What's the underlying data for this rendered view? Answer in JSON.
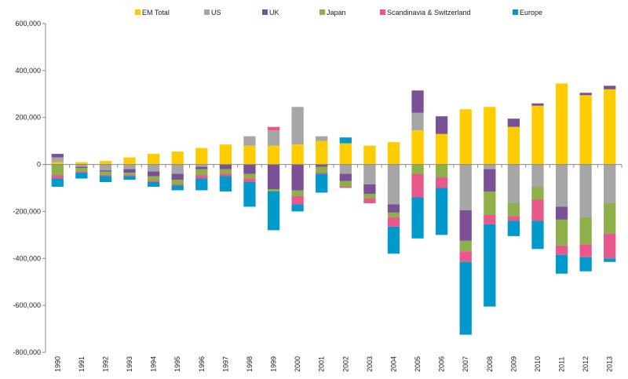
{
  "chart_data": {
    "type": "bar",
    "stacked": true,
    "grid": false,
    "legend_position": "top",
    "ylim": [
      -800000,
      600000
    ],
    "y_ticks": [
      600000,
      400000,
      200000,
      0,
      -200000,
      -400000,
      -600000,
      -800000
    ],
    "y_tick_labels": [
      "600,000",
      "400,000",
      "200,000",
      "0",
      "-200,000",
      "-400,000",
      "-600,000",
      "-800,000"
    ],
    "categories": [
      "1990",
      "1991",
      "1992",
      "1993",
      "1994",
      "1995",
      "1996",
      "1997",
      "1998",
      "1999",
      "2000",
      "2001",
      "2002",
      "2003",
      "2004",
      "2005",
      "2006",
      "2007",
      "2008",
      "2009",
      "2010",
      "2011",
      "2012",
      "2013"
    ],
    "series": [
      {
        "name": "EM Total",
        "color": "#FFCC00",
        "values": [
          10000,
          10000,
          15000,
          30000,
          45000,
          55000,
          70000,
          85000,
          80000,
          80000,
          85000,
          100000,
          90000,
          80000,
          95000,
          145000,
          130000,
          235000,
          245000,
          160000,
          250000,
          345000,
          295000,
          320000
        ]
      },
      {
        "name": "US",
        "color": "#A6A6A6",
        "values": [
          20000,
          -10000,
          -25000,
          -20000,
          -30000,
          -40000,
          -10000,
          0,
          40000,
          65000,
          160000,
          20000,
          -40000,
          -85000,
          -170000,
          75000,
          0,
          -195000,
          -20000,
          -165000,
          -95000,
          -180000,
          -225000,
          -165000
        ]
      },
      {
        "name": "UK",
        "color": "#7A5195",
        "values": [
          15000,
          -5000,
          -5000,
          -15000,
          -20000,
          -25000,
          -10000,
          -20000,
          -40000,
          -105000,
          -110000,
          -10000,
          -30000,
          -40000,
          -35000,
          95000,
          75000,
          -130000,
          -95000,
          35000,
          10000,
          -55000,
          10000,
          15000
        ]
      },
      {
        "name": "Japan",
        "color": "#8DB04A",
        "values": [
          -45000,
          -15000,
          -15000,
          -10000,
          -20000,
          -20000,
          -25000,
          -20000,
          -20000,
          -10000,
          -25000,
          -25000,
          -25000,
          -20000,
          -20000,
          -40000,
          -55000,
          -45000,
          -100000,
          -55000,
          -55000,
          -110000,
          -115000,
          -130000
        ]
      },
      {
        "name": "Scandinavia & Switzerland",
        "color": "#E9588A",
        "values": [
          -15000,
          -5000,
          -5000,
          -5000,
          -5000,
          -5000,
          -15000,
          -10000,
          -15000,
          15000,
          -35000,
          -5000,
          -5000,
          -20000,
          -40000,
          -100000,
          -45000,
          -45000,
          -40000,
          -20000,
          -90000,
          -40000,
          -55000,
          -105000
        ]
      },
      {
        "name": "Europe",
        "color": "#0099CC",
        "values": [
          -35000,
          -25000,
          -25000,
          -15000,
          -20000,
          -20000,
          -50000,
          -65000,
          -105000,
          -165000,
          -30000,
          -80000,
          25000,
          0,
          -115000,
          -175000,
          -200000,
          -310000,
          -350000,
          -65000,
          -120000,
          -80000,
          -60000,
          -15000
        ]
      }
    ]
  }
}
